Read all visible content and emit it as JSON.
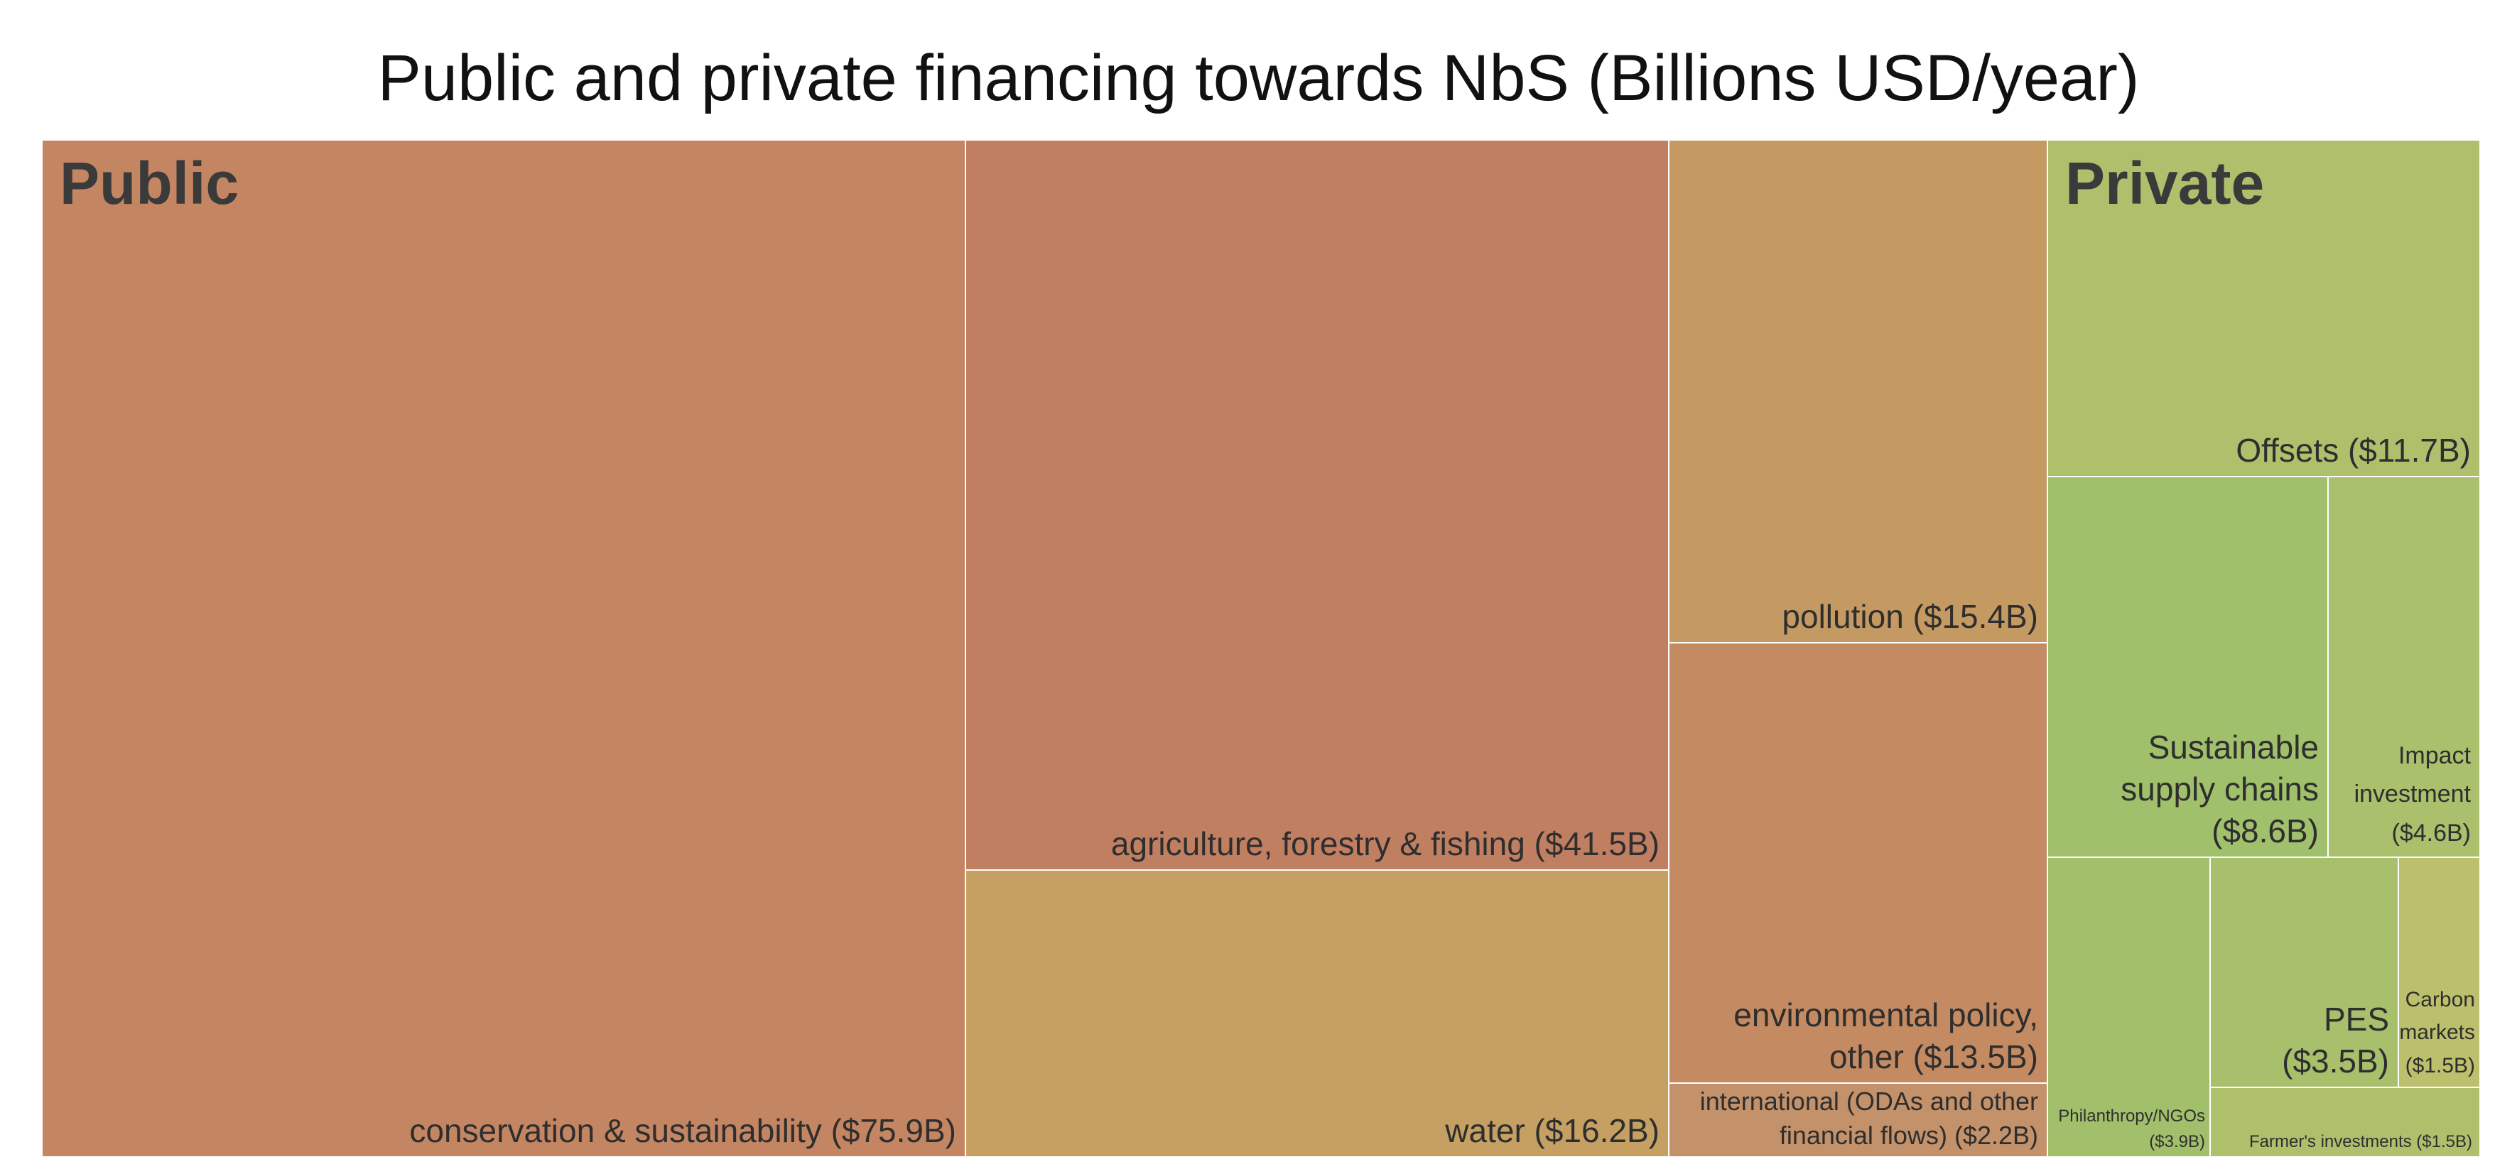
{
  "chart_data": {
    "type": "treemap",
    "title": "Public and private financing towards NbS (Billions USD/year)",
    "groups": [
      {
        "name": "Public",
        "items": [
          {
            "label": [
              "conservation & sustainability ($75.9B)"
            ],
            "value": 75.9,
            "color": "#C48562"
          },
          {
            "label": [
              "agriculture, forestry & fishing ($41.5B)"
            ],
            "value": 41.5,
            "color": "#C17F62"
          },
          {
            "label": [
              "water ($16.2B)"
            ],
            "value": 16.2,
            "color": "#C5A062"
          },
          {
            "label": [
              "pollution ($15.4B)"
            ],
            "value": 15.4,
            "color": "#C59A62"
          },
          {
            "label": [
              "environmental policy,",
              "other ($13.5B)"
            ],
            "value": 13.5,
            "color": "#C48A62"
          },
          {
            "label": [
              "international (ODAs and other",
              "financial flows) ($2.2B)"
            ],
            "value": 2.2,
            "color": "#C4926A"
          }
        ]
      },
      {
        "name": "Private",
        "items": [
          {
            "label": [
              "Offsets ($11.7B)"
            ],
            "value": 11.7,
            "color": "#AEC06C"
          },
          {
            "label": [
              "Sustainable",
              "supply chains",
              "($8.6B)"
            ],
            "value": 8.6,
            "color": "#A0C06C"
          },
          {
            "label": [
              "Impact",
              "investment",
              "($4.6B)"
            ],
            "value": 4.6,
            "color": "#AAC06C"
          },
          {
            "label": [
              "Philanthropy/NGOs",
              "($3.9B)"
            ],
            "value": 3.9,
            "color": "#A2C06C"
          },
          {
            "label": [
              "PES",
              "($3.5B)"
            ],
            "value": 3.5,
            "color": "#A8C06C"
          },
          {
            "label": [
              "Carbon",
              "markets",
              "($1.5B)"
            ],
            "value": 1.5,
            "color": "#BCC06C"
          },
          {
            "label": [
              "Farmer's investments ($1.5B)"
            ],
            "value": 1.5,
            "color": "#AEC06C"
          }
        ]
      }
    ]
  }
}
